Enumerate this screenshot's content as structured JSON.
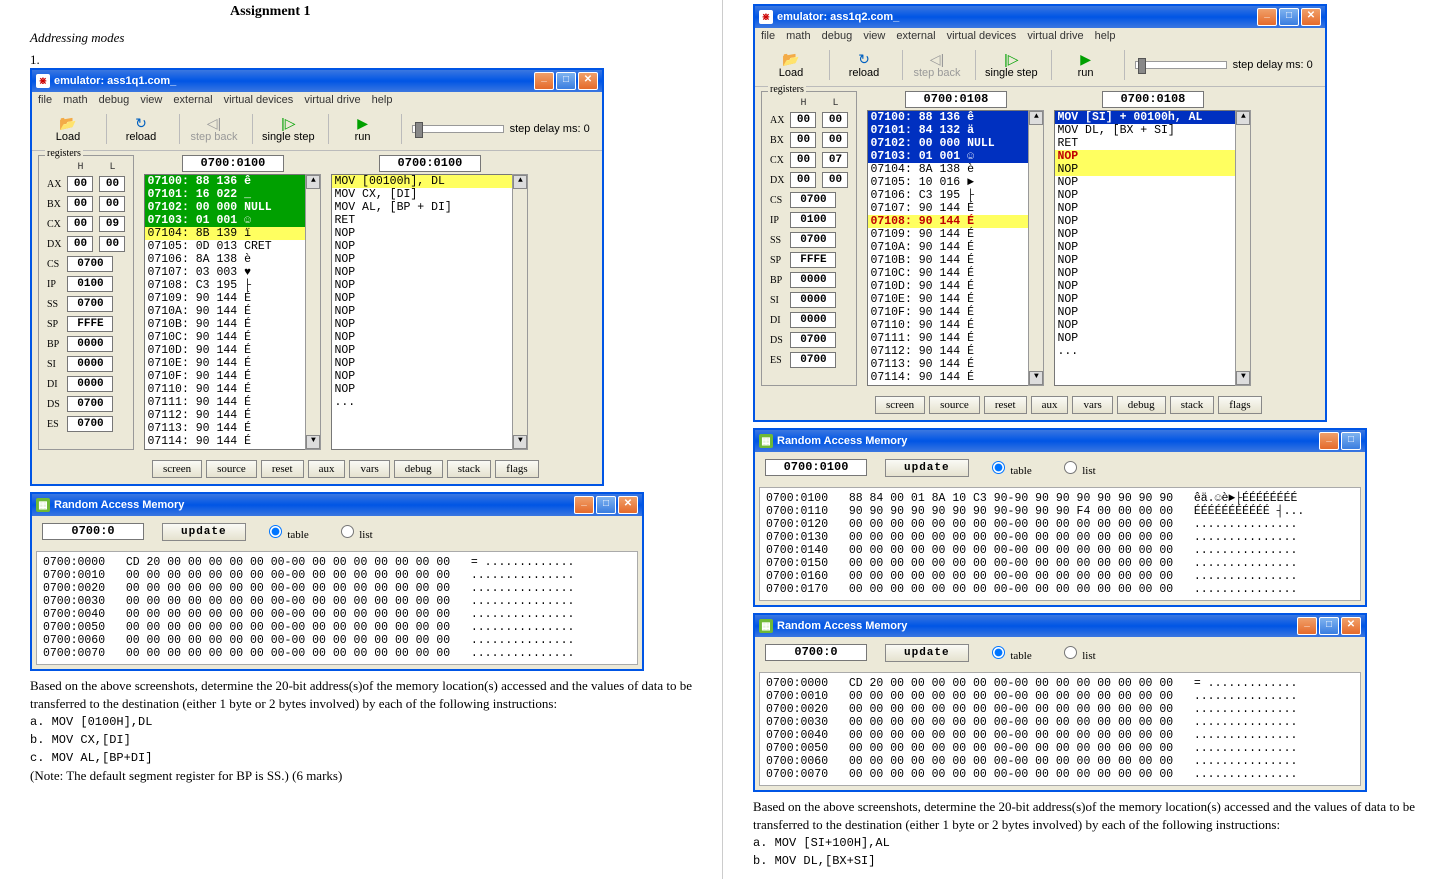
{
  "left": {
    "heading": "Assignment 1",
    "subheading": "Addressing modes",
    "qnum": "1.",
    "emulator": {
      "title": "emulator: ass1q1.com_",
      "menus": [
        "file",
        "math",
        "debug",
        "view",
        "external",
        "virtual devices",
        "virtual drive",
        "help"
      ],
      "tools": {
        "load": "Load",
        "reload": "reload",
        "stepback": "step back",
        "singlestep": "single step",
        "run": "run",
        "delay": "step delay ms: 0"
      },
      "addr_left": "0700:0100",
      "addr_right": "0700:0100",
      "registers": {
        "AX": [
          "00",
          "00"
        ],
        "BX": [
          "00",
          "00"
        ],
        "CX": [
          "00",
          "09"
        ],
        "DX": [
          "00",
          "00"
        ],
        "CS": "0700",
        "IP": "0100",
        "SS": "0700",
        "SP": "FFFE",
        "BP": "0000",
        "SI": "0000",
        "DI": "0000",
        "DS": "0700",
        "ES": "0700"
      },
      "code_left": [
        {
          "t": "07100: 88 136 ê",
          "c": "hl-green"
        },
        {
          "t": "07101: 16 022 _",
          "c": "hl-green"
        },
        {
          "t": "07102: 00 000 NULL",
          "c": "hl-green"
        },
        {
          "t": "07103: 01 001 ☺",
          "c": "hl-green"
        },
        {
          "t": "07104: 8B 139 ï",
          "c": "hl-yellowblk"
        },
        {
          "t": "07105: 0D 013 CRET",
          "c": ""
        },
        {
          "t": "07106: 8A 138 è",
          "c": ""
        },
        {
          "t": "07107: 03 003 ♥",
          "c": ""
        },
        {
          "t": "07108: C3 195 ├",
          "c": ""
        },
        {
          "t": "07109: 90 144 É",
          "c": ""
        },
        {
          "t": "0710A: 90 144 É",
          "c": ""
        },
        {
          "t": "0710B: 90 144 É",
          "c": ""
        },
        {
          "t": "0710C: 90 144 É",
          "c": ""
        },
        {
          "t": "0710D: 90 144 É",
          "c": ""
        },
        {
          "t": "0710E: 90 144 É",
          "c": ""
        },
        {
          "t": "0710F: 90 144 É",
          "c": ""
        },
        {
          "t": "07110: 90 144 É",
          "c": ""
        },
        {
          "t": "07111: 90 144 É",
          "c": ""
        },
        {
          "t": "07112: 90 144 É",
          "c": ""
        },
        {
          "t": "07113: 90 144 É",
          "c": ""
        },
        {
          "t": "07114: 90 144 É",
          "c": ""
        }
      ],
      "code_right": [
        {
          "t": "MOV [00100h], DL",
          "c": "hl-yellowblk"
        },
        {
          "t": "MOV CX, [DI]",
          "c": ""
        },
        {
          "t": "MOV AL, [BP + DI]",
          "c": ""
        },
        {
          "t": "RET",
          "c": ""
        },
        {
          "t": "NOP",
          "c": ""
        },
        {
          "t": "NOP",
          "c": ""
        },
        {
          "t": "NOP",
          "c": ""
        },
        {
          "t": "NOP",
          "c": ""
        },
        {
          "t": "NOP",
          "c": ""
        },
        {
          "t": "NOP",
          "c": ""
        },
        {
          "t": "NOP",
          "c": ""
        },
        {
          "t": "NOP",
          "c": ""
        },
        {
          "t": "NOP",
          "c": ""
        },
        {
          "t": "NOP",
          "c": ""
        },
        {
          "t": "NOP",
          "c": ""
        },
        {
          "t": "NOP",
          "c": ""
        },
        {
          "t": "NOP",
          "c": ""
        },
        {
          "t": "...",
          "c": ""
        }
      ],
      "bottom_buttons": [
        "screen",
        "source",
        "reset",
        "aux",
        "vars",
        "debug",
        "stack",
        "flags"
      ]
    },
    "ram": {
      "title": "Random Access Memory",
      "addr": "0700:0",
      "update": "update",
      "radio_table": "table",
      "radio_list": "list",
      "dump": "0700:0000   CD 20 00 00 00 00 00 00-00 00 00 00 00 00 00 00   = .............\n0700:0010   00 00 00 00 00 00 00 00-00 00 00 00 00 00 00 00   ...............\n0700:0020   00 00 00 00 00 00 00 00-00 00 00 00 00 00 00 00   ...............\n0700:0030   00 00 00 00 00 00 00 00-00 00 00 00 00 00 00 00   ...............\n0700:0040   00 00 00 00 00 00 00 00-00 00 00 00 00 00 00 00   ...............\n0700:0050   00 00 00 00 00 00 00 00-00 00 00 00 00 00 00 00   ...............\n0700:0060   00 00 00 00 00 00 00 00-00 00 00 00 00 00 00 00   ...............\n0700:0070   00 00 00 00 00 00 00 00-00 00 00 00 00 00 00 00   ..............."
    },
    "question_html": "Based on the above screenshots, determine the 20-bit address(s)of the memory location(s) accessed and the values of data to be transferred to the destination (either 1 byte or 2 bytes involved) by each of the following instructions:",
    "q_a": "a. MOV [0100H],DL",
    "q_b": "b. MOV CX,[DI]",
    "q_c": "c. MOV AL,[BP+DI]",
    "q_note": "(Note: The default segment register for BP is SS.)  (6 marks)"
  },
  "right": {
    "emulator": {
      "title": "emulator: ass1q2.com_",
      "menus": [
        "file",
        "math",
        "debug",
        "view",
        "external",
        "virtual devices",
        "virtual drive",
        "help"
      ],
      "tools": {
        "load": "Load",
        "reload": "reload",
        "stepback": "step back",
        "singlestep": "single step",
        "run": "run",
        "delay": "step delay ms: 0"
      },
      "addr_left": "0700:0108",
      "addr_right": "0700:0108",
      "registers": {
        "AX": [
          "00",
          "00"
        ],
        "BX": [
          "00",
          "00"
        ],
        "CX": [
          "00",
          "07"
        ],
        "DX": [
          "00",
          "00"
        ],
        "CS": "0700",
        "IP": "0100",
        "SS": "0700",
        "SP": "FFFE",
        "BP": "0000",
        "SI": "0000",
        "DI": "0000",
        "DS": "0700",
        "ES": "0700"
      },
      "code_left": [
        {
          "t": "07100: 88 136 ê",
          "c": "hl-blue"
        },
        {
          "t": "07101: 84 132 ä",
          "c": "hl-blue"
        },
        {
          "t": "07102: 00 000 NULL",
          "c": "hl-blue"
        },
        {
          "t": "07103: 01 001 ☺",
          "c": "hl-blue"
        },
        {
          "t": "07104: 8A 138 è",
          "c": ""
        },
        {
          "t": "07105: 10 016 ►",
          "c": ""
        },
        {
          "t": "07106: C3 195 ├",
          "c": ""
        },
        {
          "t": "07107: 90 144 É",
          "c": ""
        },
        {
          "t": "07108: 90 144 É",
          "c": "hl-yellow"
        },
        {
          "t": "07109: 90 144 É",
          "c": ""
        },
        {
          "t": "0710A: 90 144 É",
          "c": ""
        },
        {
          "t": "0710B: 90 144 É",
          "c": ""
        },
        {
          "t": "0710C: 90 144 É",
          "c": ""
        },
        {
          "t": "0710D: 90 144 É",
          "c": ""
        },
        {
          "t": "0710E: 90 144 É",
          "c": ""
        },
        {
          "t": "0710F: 90 144 É",
          "c": ""
        },
        {
          "t": "07110: 90 144 É",
          "c": ""
        },
        {
          "t": "07111: 90 144 É",
          "c": ""
        },
        {
          "t": "07112: 90 144 É",
          "c": ""
        },
        {
          "t": "07113: 90 144 É",
          "c": ""
        },
        {
          "t": "07114: 90 144 É",
          "c": ""
        }
      ],
      "code_right": [
        {
          "t": "MOV [SI] + 00100h, AL",
          "c": "hl-blue"
        },
        {
          "t": "MOV DL, [BX + SI]",
          "c": ""
        },
        {
          "t": "RET",
          "c": ""
        },
        {
          "t": "NOP",
          "c": "hl-yellow"
        },
        {
          "t": "NOP",
          "c": "hl-yellowblk"
        },
        {
          "t": "NOP",
          "c": ""
        },
        {
          "t": "NOP",
          "c": ""
        },
        {
          "t": "NOP",
          "c": ""
        },
        {
          "t": "NOP",
          "c": ""
        },
        {
          "t": "NOP",
          "c": ""
        },
        {
          "t": "NOP",
          "c": ""
        },
        {
          "t": "NOP",
          "c": ""
        },
        {
          "t": "NOP",
          "c": ""
        },
        {
          "t": "NOP",
          "c": ""
        },
        {
          "t": "NOP",
          "c": ""
        },
        {
          "t": "NOP",
          "c": ""
        },
        {
          "t": "NOP",
          "c": ""
        },
        {
          "t": "NOP",
          "c": ""
        },
        {
          "t": "...",
          "c": ""
        }
      ],
      "bottom_buttons": [
        "screen",
        "source",
        "reset",
        "aux",
        "vars",
        "debug",
        "stack",
        "flags"
      ]
    },
    "ram_top": {
      "title": "Random Access Memory",
      "addr": "0700:0100",
      "update": "update",
      "radio_table": "table",
      "radio_list": "list",
      "dump": "0700:0100   88 84 00 01 8A 10 C3 90-90 90 90 90 90 90 90 90   êä.☺è►├ÉÉÉÉÉÉÉÉ\n0700:0110   90 90 90 90 90 90 90 90-90 90 90 F4 00 00 00 00   ÉÉÉÉÉÉÉÉÉÉÉ ┤...\n0700:0120   00 00 00 00 00 00 00 00-00 00 00 00 00 00 00 00   ...............\n0700:0130   00 00 00 00 00 00 00 00-00 00 00 00 00 00 00 00   ...............\n0700:0140   00 00 00 00 00 00 00 00-00 00 00 00 00 00 00 00   ...............\n0700:0150   00 00 00 00 00 00 00 00-00 00 00 00 00 00 00 00   ...............\n0700:0160   00 00 00 00 00 00 00 00-00 00 00 00 00 00 00 00   ...............\n0700:0170   00 00 00 00 00 00 00 00-00 00 00 00 00 00 00 00   ..............."
    },
    "ram_bottom": {
      "title": "Random Access Memory",
      "addr": "0700:0",
      "update": "update",
      "radio_table": "table",
      "radio_list": "list",
      "dump": "0700:0000   CD 20 00 00 00 00 00 00-00 00 00 00 00 00 00 00   = .............\n0700:0010   00 00 00 00 00 00 00 00-00 00 00 00 00 00 00 00   ...............\n0700:0020   00 00 00 00 00 00 00 00-00 00 00 00 00 00 00 00   ...............\n0700:0030   00 00 00 00 00 00 00 00-00 00 00 00 00 00 00 00   ...............\n0700:0040   00 00 00 00 00 00 00 00-00 00 00 00 00 00 00 00   ...............\n0700:0050   00 00 00 00 00 00 00 00-00 00 00 00 00 00 00 00   ...............\n0700:0060   00 00 00 00 00 00 00 00-00 00 00 00 00 00 00 00   ...............\n0700:0070   00 00 00 00 00 00 00 00-00 00 00 00 00 00 00 00   ..............."
    },
    "question_html": "Based on the above screenshots, determine the 20-bit address(s)of the memory location(s) accessed and the values of  data to be transferred to the destination (either 1 byte or 2 bytes involved) by each of the following instructions:",
    "q_a": "a. MOV [SI+100H],AL",
    "q_b": "b. MOV DL,[BX+SI]"
  }
}
